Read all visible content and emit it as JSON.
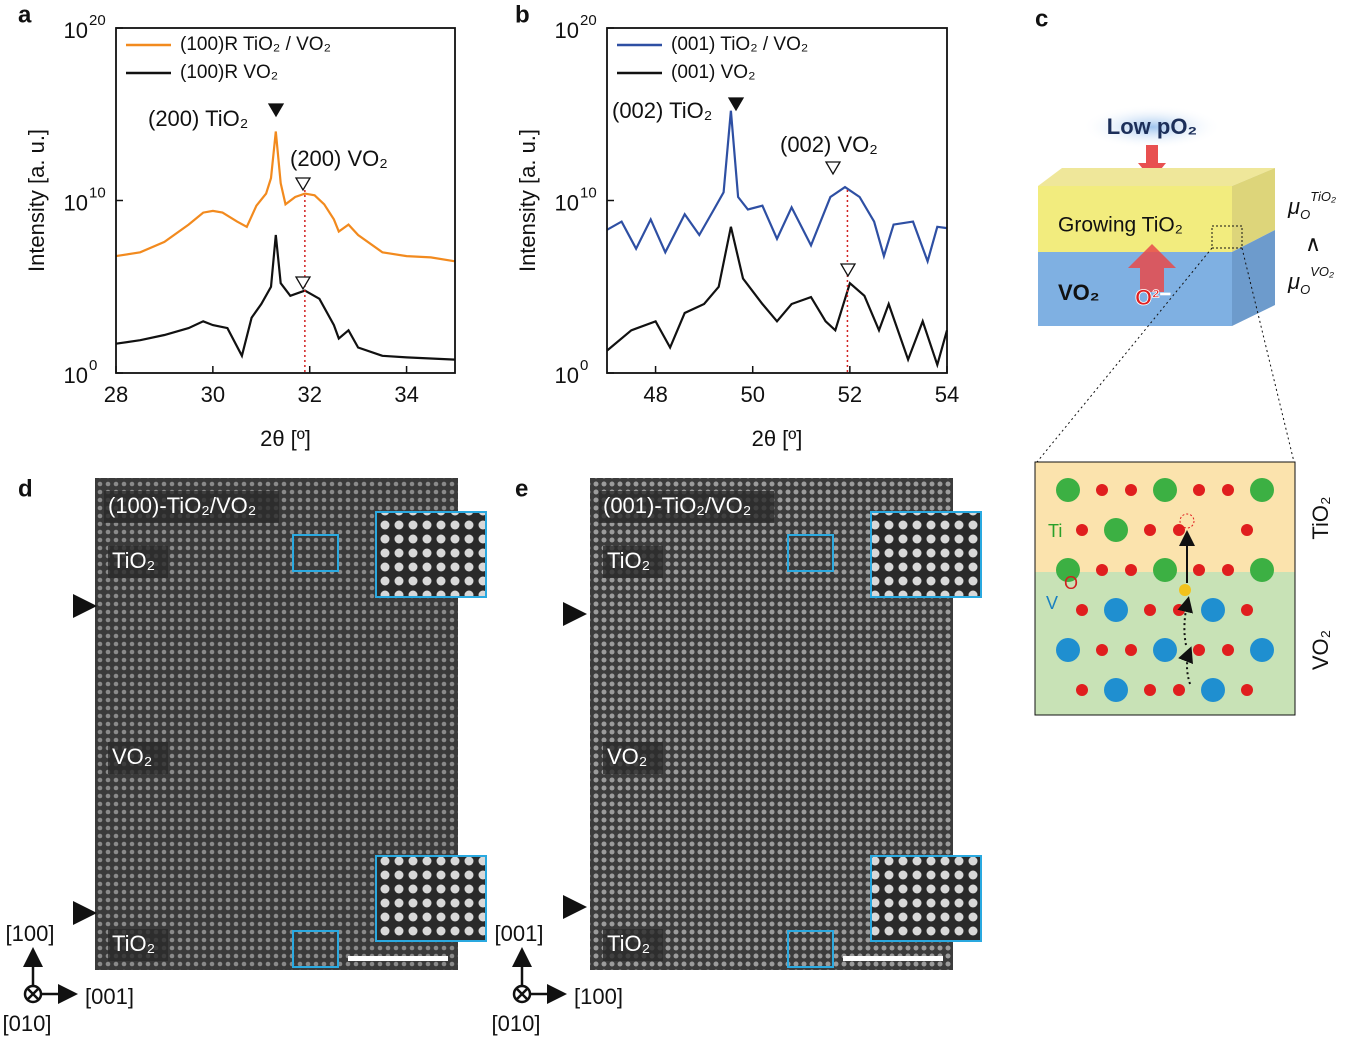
{
  "chart_data": [
    {
      "type": "line",
      "panel": "a",
      "ylabel": "Intensity [a. u.]",
      "xlabel": "2θ [º]",
      "log_y": true,
      "xlim": [
        28,
        35
      ],
      "xticks": [
        28,
        30,
        32,
        34
      ],
      "ylim": [
        1,
        1e+20
      ],
      "yticks": [
        {
          "value": 1,
          "label": "10",
          "exponent": "0"
        },
        {
          "value": 10000000000.0,
          "label": "10",
          "exponent": "10"
        },
        {
          "value": 1e+20,
          "label": "10",
          "exponent": "20"
        }
      ],
      "series": [
        {
          "name": "(100)R TiO₂ / VO₂",
          "color": "#f28a1e",
          "x": [
            28,
            28.5,
            29,
            29.5,
            29.8,
            30,
            30.2,
            30.5,
            30.7,
            30.9,
            31.1,
            31.2,
            31.3,
            31.4,
            31.5,
            31.7,
            31.9,
            32.1,
            32.3,
            32.5,
            32.6,
            32.8,
            33,
            33.5,
            34,
            34.5,
            35
          ],
          "values": [
            6000000.0,
            10000000.0,
            40000000.0,
            400000000.0,
            2000000000.0,
            2500000000.0,
            2000000000.0,
            600000000.0,
            300000000.0,
            5000000000.0,
            25000000000.0,
            200000000000.0,
            100000000000000.0,
            100000000000.0,
            6000000000.0,
            16000000000.0,
            25000000000.0,
            20000000000.0,
            6000000000.0,
            800000000.0,
            160000000.0,
            400000000.0,
            100000000.0,
            10000000.0,
            6000000.0,
            5000000.0,
            3000000.0
          ]
        },
        {
          "name": "(100)R VO₂",
          "color": "#111111",
          "x": [
            28,
            28.5,
            29,
            29.5,
            29.8,
            30,
            30.3,
            30.6,
            30.8,
            31,
            31.2,
            31.3,
            31.4,
            31.6,
            31.9,
            32.2,
            32.5,
            32.6,
            32.8,
            33,
            33.5,
            34,
            35
          ],
          "values": [
            50,
            80,
            160,
            400,
            1000,
            600,
            400,
            10,
            1600,
            10000.0,
            100000.0,
            100000000.0,
            160000.0,
            30000.0,
            60000.0,
            20000.0,
            600,
            100,
            300,
            30,
            10,
            8,
            6
          ]
        }
      ],
      "peak_x": 31.9,
      "annotations": [
        "(200) TiO₂",
        "(200) VO₂"
      ]
    },
    {
      "type": "line",
      "panel": "b",
      "ylabel": "Intensity [a. u.]",
      "xlabel": "2θ [º]",
      "log_y": true,
      "xlim": [
        47,
        54
      ],
      "xticks": [
        48,
        50,
        52,
        54
      ],
      "ylim": [
        1,
        1e+20
      ],
      "yticks": [
        {
          "value": 1,
          "label": "10",
          "exponent": "0"
        },
        {
          "value": 10000000000.0,
          "label": "10",
          "exponent": "10"
        },
        {
          "value": 1e+20,
          "label": "10",
          "exponent": "20"
        }
      ],
      "series": [
        {
          "name": "(001) TiO₂ / VO₂",
          "color": "#2e4fa3",
          "x": [
            47,
            47.3,
            47.6,
            47.9,
            48.2,
            48.6,
            48.9,
            49.2,
            49.4,
            49.55,
            49.7,
            49.9,
            50.2,
            50.5,
            50.8,
            51.2,
            51.6,
            51.9,
            52.2,
            52.5,
            52.7,
            52.9,
            53.3,
            53.6,
            53.8,
            54
          ],
          "values": [
            200000000.0,
            600000000.0,
            16000000.0,
            800000000.0,
            10000000.0,
            1600000000.0,
            100000000.0,
            3000000000.0,
            30000000000.0,
            1600000000000000.0,
            16000000000.0,
            3000000000.0,
            5000000000.0,
            60000000.0,
            4000000000.0,
            25000000.0,
            16000000000.0,
            60000000000.0,
            16000000000.0,
            600000000.0,
            6000000.0,
            400000000.0,
            600000000.0,
            3000000.0,
            300000000.0,
            250000000.0
          ]
        },
        {
          "name": "(001) VO₂",
          "color": "#111111",
          "x": [
            47,
            47.5,
            48,
            48.3,
            48.6,
            49,
            49.3,
            49.55,
            49.8,
            50.2,
            50.5,
            50.8,
            51.2,
            51.5,
            51.7,
            52,
            52.3,
            52.6,
            52.8,
            53.2,
            53.5,
            53.8,
            54
          ],
          "values": [
            20,
            300,
            1000,
            30,
            3000,
            10000.0,
            100000.0,
            300000000.0,
            300000.0,
            10000.0,
            1000,
            10000.0,
            25000.0,
            1000,
            300,
            160000.0,
            30000.0,
            300,
            10000.0,
            6,
            1000,
            3,
            300
          ]
        }
      ],
      "peak_x": 51.95,
      "annotations": [
        "(002) TiO₂",
        "(002) VO₂"
      ]
    }
  ],
  "diagram": {
    "panel": "c",
    "source": "Low pO₂",
    "layer_top": "Growing TiO₂",
    "layer_bottom": "VO₂",
    "ion": "O²⁻",
    "mu_top": {
      "symbol": "μ",
      "sub": "O",
      "sup": "TiO₂"
    },
    "relation": "∧",
    "mu_bottom": {
      "symbol": "μ",
      "sub": "O",
      "sup": "VO₂"
    },
    "atoms": {
      "ti": "Ti",
      "o": "O",
      "v": "V"
    },
    "region_top": "TiO₂",
    "region_bottom": "VO₂"
  },
  "images": [
    {
      "panel": "d",
      "title": "(100)-TiO₂/VO₂",
      "label_top": "TiO₂",
      "label_mid": "VO₂",
      "label_bottom": "TiO₂",
      "axis_up": "[100]",
      "axis_right": "[001]",
      "axis_in": "[010]"
    },
    {
      "panel": "e",
      "title": "(001)-TiO₂/VO₂",
      "label_top": "TiO₂",
      "label_mid": "VO₂",
      "label_bottom": "TiO₂",
      "axis_up": "[001]",
      "axis_right": "[100]",
      "axis_in": "[010]"
    }
  ]
}
